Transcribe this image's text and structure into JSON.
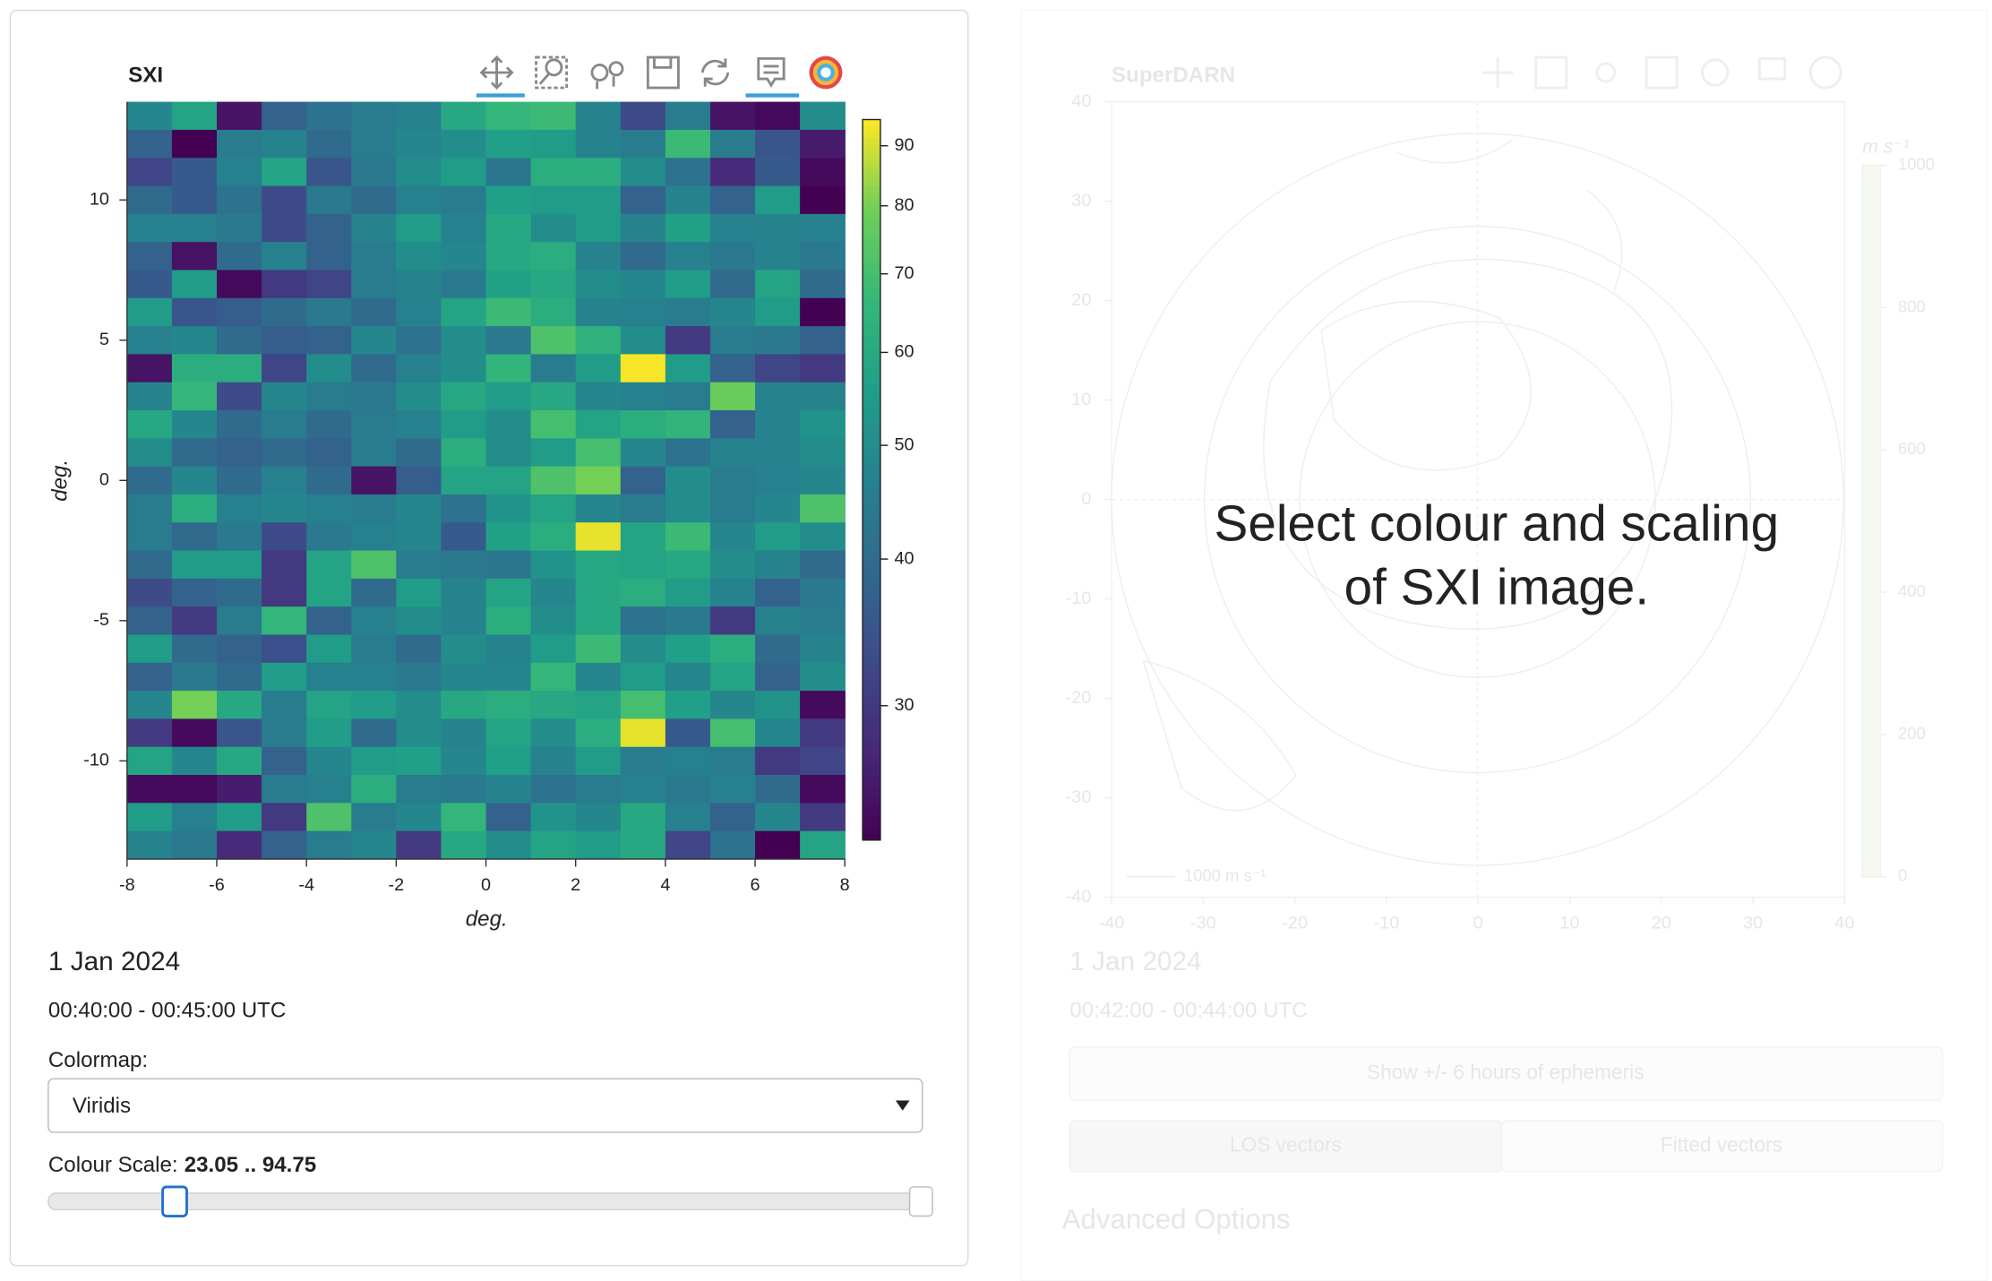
{
  "chart_data": {
    "type": "heatmap",
    "title": "SXI",
    "xlabel": "deg.",
    "ylabel": "deg.",
    "colormap": "Viridis",
    "x": [
      -7.5,
      -6.5,
      -5.5,
      -4.5,
      -3.5,
      -2.5,
      -1.5,
      -0.5,
      0.5,
      1.5,
      2.5,
      3.5,
      4.5,
      5.5,
      6.5,
      7.5
    ],
    "y": [
      13,
      12,
      11,
      10,
      9,
      8,
      7,
      6,
      5,
      4,
      3,
      2,
      1,
      0,
      -1,
      -2,
      -3,
      -4,
      -5,
      -6,
      -7,
      -8,
      -9,
      -10,
      -11,
      -12,
      -13
    ],
    "z": [
      [
        48,
        58,
        25,
        38,
        42,
        45,
        47,
        60,
        66,
        68,
        47,
        33,
        45,
        25,
        24,
        50
      ],
      [
        38,
        23,
        45,
        47,
        40,
        45,
        48,
        50,
        56,
        55,
        47,
        45,
        68,
        45,
        35,
        26
      ],
      [
        32,
        36,
        46,
        58,
        35,
        44,
        50,
        55,
        43,
        62,
        62,
        50,
        42,
        28,
        36,
        24
      ],
      [
        40,
        36,
        42,
        33,
        44,
        40,
        46,
        45,
        56,
        55,
        55,
        38,
        47,
        38,
        55,
        23
      ],
      [
        46,
        46,
        44,
        33,
        38,
        47,
        55,
        46,
        60,
        50,
        55,
        47,
        57,
        46,
        47,
        46
      ],
      [
        38,
        25,
        40,
        46,
        38,
        45,
        50,
        48,
        60,
        62,
        47,
        40,
        46,
        44,
        47,
        44
      ],
      [
        36,
        55,
        24,
        30,
        32,
        45,
        47,
        44,
        57,
        60,
        50,
        48,
        55,
        40,
        58,
        40
      ],
      [
        55,
        35,
        37,
        40,
        44,
        40,
        46,
        58,
        68,
        62,
        47,
        46,
        45,
        48,
        55,
        23
      ],
      [
        46,
        48,
        40,
        37,
        38,
        48,
        42,
        50,
        44,
        72,
        64,
        50,
        30,
        45,
        44,
        38
      ],
      [
        25,
        62,
        62,
        32,
        50,
        40,
        46,
        50,
        65,
        45,
        55,
        94,
        55,
        38,
        32,
        30
      ],
      [
        47,
        66,
        33,
        48,
        45,
        44,
        50,
        60,
        55,
        60,
        48,
        46,
        45,
        78,
        47,
        47
      ],
      [
        60,
        48,
        40,
        45,
        40,
        45,
        46,
        55,
        50,
        70,
        58,
        62,
        65,
        38,
        47,
        52
      ],
      [
        50,
        40,
        38,
        40,
        38,
        45,
        40,
        62,
        50,
        55,
        70,
        48,
        42,
        47,
        47,
        50
      ],
      [
        40,
        48,
        40,
        46,
        40,
        25,
        37,
        58,
        58,
        72,
        80,
        38,
        50,
        45,
        46,
        48
      ],
      [
        45,
        62,
        46,
        48,
        46,
        45,
        48,
        42,
        52,
        58,
        48,
        45,
        50,
        45,
        48,
        72
      ],
      [
        45,
        40,
        44,
        33,
        44,
        46,
        48,
        36,
        57,
        62,
        92,
        58,
        68,
        48,
        55,
        50
      ],
      [
        40,
        55,
        55,
        30,
        58,
        72,
        45,
        44,
        43,
        52,
        60,
        58,
        60,
        50,
        47,
        40
      ],
      [
        33,
        38,
        40,
        30,
        58,
        40,
        55,
        47,
        58,
        48,
        60,
        62,
        55,
        47,
        38,
        44
      ],
      [
        38,
        30,
        45,
        66,
        38,
        46,
        50,
        47,
        62,
        50,
        60,
        42,
        44,
        30,
        47,
        45
      ],
      [
        55,
        40,
        38,
        34,
        55,
        45,
        40,
        50,
        47,
        55,
        68,
        50,
        56,
        62,
        40,
        47
      ],
      [
        38,
        44,
        40,
        55,
        46,
        46,
        44,
        48,
        48,
        66,
        48,
        55,
        48,
        58,
        38,
        50
      ],
      [
        48,
        80,
        60,
        45,
        58,
        55,
        50,
        60,
        62,
        60,
        58,
        70,
        56,
        48,
        52,
        24
      ],
      [
        30,
        24,
        35,
        45,
        55,
        40,
        50,
        47,
        58,
        50,
        62,
        92,
        36,
        70,
        48,
        30
      ],
      [
        58,
        48,
        60,
        38,
        48,
        55,
        56,
        48,
        56,
        47,
        55,
        45,
        46,
        45,
        30,
        32
      ],
      [
        24,
        24,
        26,
        45,
        46,
        62,
        45,
        44,
        47,
        42,
        45,
        46,
        44,
        46,
        40,
        24
      ],
      [
        55,
        46,
        55,
        30,
        72,
        45,
        48,
        66,
        38,
        52,
        48,
        60,
        46,
        38,
        48,
        30
      ],
      [
        47,
        44,
        28,
        38,
        45,
        48,
        30,
        60,
        50,
        58,
        55,
        60,
        32,
        42,
        23,
        58
      ]
    ],
    "xlim": [
      -8,
      8
    ],
    "ylim": [
      -13.5,
      13.5
    ],
    "xticks": [
      -8,
      -6,
      -4,
      -2,
      0,
      2,
      4,
      6,
      8
    ],
    "yticks": [
      -10,
      -5,
      0,
      5,
      10
    ],
    "colorbar": {
      "lim": [
        23.05,
        94.75
      ],
      "scale": "log",
      "ticks": [
        30,
        40,
        50,
        60,
        70,
        80,
        90
      ]
    }
  },
  "sxi_info": {
    "date": "1 Jan 2024",
    "time_range": "00:40:00 - 00:45:00 UTC",
    "colormap_label": "Colormap:",
    "scale_label": "Colour Scale:",
    "scale_value": "23.05 .. 94.75"
  },
  "superdarn_panel": {
    "title": "SuperDARN",
    "xlim": [
      -40,
      40
    ],
    "ylim": [
      -40,
      40
    ],
    "xticks": [
      -40,
      -30,
      -20,
      -10,
      0,
      10,
      20,
      30,
      40
    ],
    "yticks": [
      -40,
      -30,
      -20,
      -10,
      0,
      10,
      20,
      30,
      40
    ],
    "colorbar_unit": "m s⁻¹",
    "colorbar_lim": [
      0,
      1000
    ],
    "colorbar_ticks": [
      0,
      200,
      400,
      600,
      800,
      1000
    ],
    "vector_key": "1000 m s⁻¹",
    "date": "1 Jan 2024",
    "time_range": "00:42:00 - 00:44:00 UTC",
    "ephemeris_button": "Show +/- 6 hours of ephemeris",
    "los_button": "LOS vectors",
    "fitted_button": "Fitted vectors",
    "advanced": "Advanced Options"
  },
  "overlay_message": [
    "Select colour and scaling",
    "of SXI image."
  ]
}
